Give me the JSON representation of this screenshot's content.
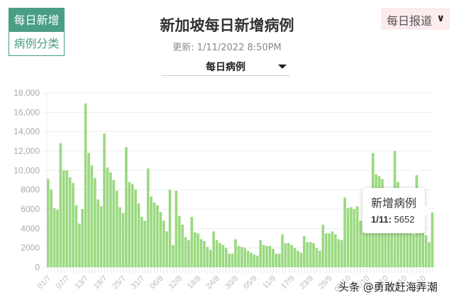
{
  "tabs": [
    {
      "label": "每日新增",
      "active": true
    },
    {
      "label": "病例分类",
      "active": false
    }
  ],
  "header": {
    "title": "新加坡每日新增病例",
    "updated": "更新: 1/11/2022 8:50PM"
  },
  "dropdown": {
    "selected": "每日病例"
  },
  "report_button": {
    "label": "每日报道",
    "icon": "chevron-down-icon"
  },
  "tooltip": {
    "title": "新增病例",
    "date": "1/11:",
    "value": "5652"
  },
  "watermark": "头条 @勇敢赶海弄潮",
  "colors": {
    "bar": "#9ad97f",
    "tab_accent": "#4a9e86",
    "report_bg": "#fcecee",
    "grid": "#eeeeee",
    "axis_text": "#aaaaaa"
  },
  "chart_data": {
    "type": "bar",
    "title": "新加坡每日新增病例",
    "xlabel": "",
    "ylabel": "",
    "ylim": [
      0,
      18000
    ],
    "yticks": [
      "0",
      "2000",
      "4000",
      "6000",
      "8000",
      "10,000",
      "12,000",
      "14,000",
      "16,000",
      "18,000"
    ],
    "xtick_labels": [
      "01/7",
      "07/7",
      "13/7",
      "19/7",
      "25/7",
      "31/7",
      "06/8",
      "12/8",
      "18/8",
      "24/8",
      "30/8",
      "05/9",
      "11/9",
      "17/9",
      "23/9",
      "29/9",
      "05/10",
      "11/10",
      "17/10",
      "23/10",
      "29/10"
    ],
    "grid": true,
    "legend": "none",
    "series": [
      {
        "name": "新增病例",
        "values": [
          9100,
          8000,
          6100,
          5950,
          12800,
          10000,
          10000,
          9300,
          8700,
          6400,
          4500,
          6000,
          16900,
          11800,
          10500,
          9200,
          7000,
          6300,
          13800,
          10300,
          9800,
          9000,
          7900,
          6200,
          5600,
          12400,
          8800,
          8600,
          8000,
          6600,
          5200,
          4800,
          10200,
          7300,
          6700,
          6400,
          5700,
          4800,
          3700,
          8000,
          2300,
          7900,
          5300,
          4400,
          3100,
          2800,
          5200,
          3600,
          3500,
          2900,
          2700,
          2100,
          1800,
          3700,
          2800,
          2500,
          2300,
          2000,
          1400,
          1400,
          2900,
          2200,
          2100,
          2000,
          1700,
          1500,
          1300,
          1200,
          2800,
          2300,
          2200,
          2200,
          1900,
          1400,
          1400,
          3400,
          2500,
          2500,
          2300,
          2000,
          1700,
          1500,
          3200,
          2600,
          2600,
          2500,
          2000,
          1700,
          4400,
          3500,
          3500,
          3700,
          3400,
          2900,
          2800,
          7200,
          6100,
          6200,
          6000,
          6300,
          4800,
          4700,
          4700,
          5000,
          11800,
          9600,
          9400,
          9100,
          5800,
          6100,
          5200,
          12000,
          8800,
          5200,
          4800,
          4600,
          3600,
          3400,
          9500,
          5700,
          3700,
          3300,
          2600,
          5652
        ]
      }
    ]
  }
}
